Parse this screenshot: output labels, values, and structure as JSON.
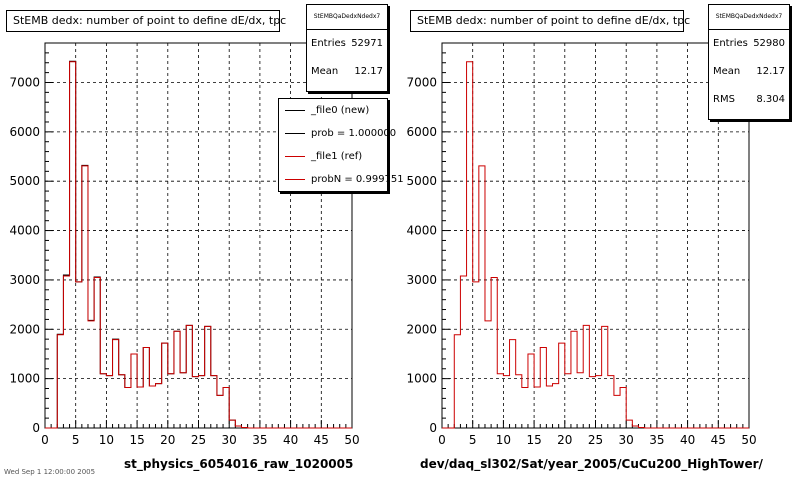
{
  "colors": {
    "new": "#000000",
    "ref": "#cc0000",
    "grid": "#000000",
    "background": "#ffffff"
  },
  "footer_text": "Wed Sep 1 12:00:00 2005",
  "pads": [
    {
      "title": "StEMB dedx: number of point to define dE/dx, tpc",
      "x_title": "st_physics_6054016_raw_1020005",
      "stats": {
        "name": "StEMBQaDedxNdedx7",
        "rows": [
          {
            "label": "Entries",
            "value": "52971"
          },
          {
            "label": "Mean",
            "value": "12.17"
          }
        ]
      },
      "legend": [
        {
          "label": "_file0 (new)",
          "color": "#000000"
        },
        {
          "label": "prob = 1.000000",
          "color": "#000000"
        },
        {
          "label": "_file1 (ref)",
          "color": "#cc0000"
        },
        {
          "label": "probN = 0.999751",
          "color": "#cc0000"
        }
      ]
    },
    {
      "title": "StEMB dedx: number of point to define dE/dx, tpc",
      "x_title": "dev/daq_sl302/Sat/year_2005/CuCu200_HighTower/",
      "stats": {
        "name": "StEMBQaDedxNdedx7",
        "rows": [
          {
            "label": "Entries",
            "value": "52980"
          },
          {
            "label": "Mean",
            "value": "12.17"
          },
          {
            "label": "RMS",
            "value": "8.304"
          }
        ]
      },
      "legend": []
    }
  ],
  "chart_data": [
    {
      "type": "bar",
      "title": "StEMB dedx: number of point to define dE/dx, tpc",
      "xlabel": "st_physics_6054016_raw_1020005",
      "ylabel": "",
      "xlim": [
        0,
        50
      ],
      "ylim": [
        0,
        7800
      ],
      "x_ticks": [
        0,
        5,
        10,
        15,
        20,
        25,
        30,
        35,
        40,
        45,
        50
      ],
      "y_ticks": [
        0,
        1000,
        2000,
        3000,
        4000,
        5000,
        6000,
        7000
      ],
      "grid": true,
      "bin_edges_start": 0,
      "bin_width": 1,
      "series": [
        {
          "name": "_file0 (new)",
          "color": "#000000",
          "values": [
            0,
            0,
            1900,
            3100,
            7430,
            2960,
            5320,
            2180,
            3060,
            1100,
            1060,
            1800,
            1080,
            820,
            1500,
            830,
            1630,
            850,
            900,
            1720,
            1100,
            1960,
            1120,
            2080,
            1040,
            1060,
            2060,
            1060,
            660,
            820,
            160,
            40,
            10,
            0,
            0,
            0,
            0,
            0,
            0,
            0,
            0,
            0,
            0,
            0,
            0,
            0,
            0,
            0,
            0,
            0
          ]
        },
        {
          "name": "_file1 (ref)",
          "color": "#cc0000",
          "values": [
            0,
            0,
            1890,
            3080,
            7420,
            2960,
            5310,
            2170,
            3050,
            1100,
            1060,
            1790,
            1080,
            820,
            1500,
            830,
            1630,
            850,
            900,
            1720,
            1100,
            1960,
            1120,
            2080,
            1040,
            1060,
            2060,
            1060,
            660,
            820,
            160,
            40,
            10,
            0,
            0,
            0,
            0,
            0,
            0,
            0,
            0,
            0,
            0,
            0,
            0,
            0,
            0,
            0,
            0,
            0
          ]
        }
      ]
    },
    {
      "type": "bar",
      "title": "StEMB dedx: number of point to define dE/dx, tpc",
      "xlabel": "dev/daq_sl302/Sat/year_2005/CuCu200_HighTower/",
      "ylabel": "",
      "xlim": [
        0,
        50
      ],
      "ylim": [
        0,
        7800
      ],
      "x_ticks": [
        0,
        5,
        10,
        15,
        20,
        25,
        30,
        35,
        40,
        45,
        50
      ],
      "y_ticks": [
        0,
        1000,
        2000,
        3000,
        4000,
        5000,
        6000,
        7000
      ],
      "grid": true,
      "bin_edges_start": 0,
      "bin_width": 1,
      "series": [
        {
          "name": "_file1 (ref)",
          "color": "#cc0000",
          "values": [
            0,
            0,
            1890,
            3080,
            7420,
            2960,
            5310,
            2170,
            3050,
            1100,
            1060,
            1790,
            1080,
            820,
            1500,
            830,
            1630,
            850,
            900,
            1720,
            1100,
            1960,
            1120,
            2080,
            1040,
            1060,
            2060,
            1060,
            660,
            820,
            160,
            40,
            10,
            0,
            0,
            0,
            0,
            0,
            0,
            0,
            0,
            0,
            0,
            0,
            0,
            0,
            0,
            0,
            0,
            0
          ]
        }
      ]
    }
  ]
}
